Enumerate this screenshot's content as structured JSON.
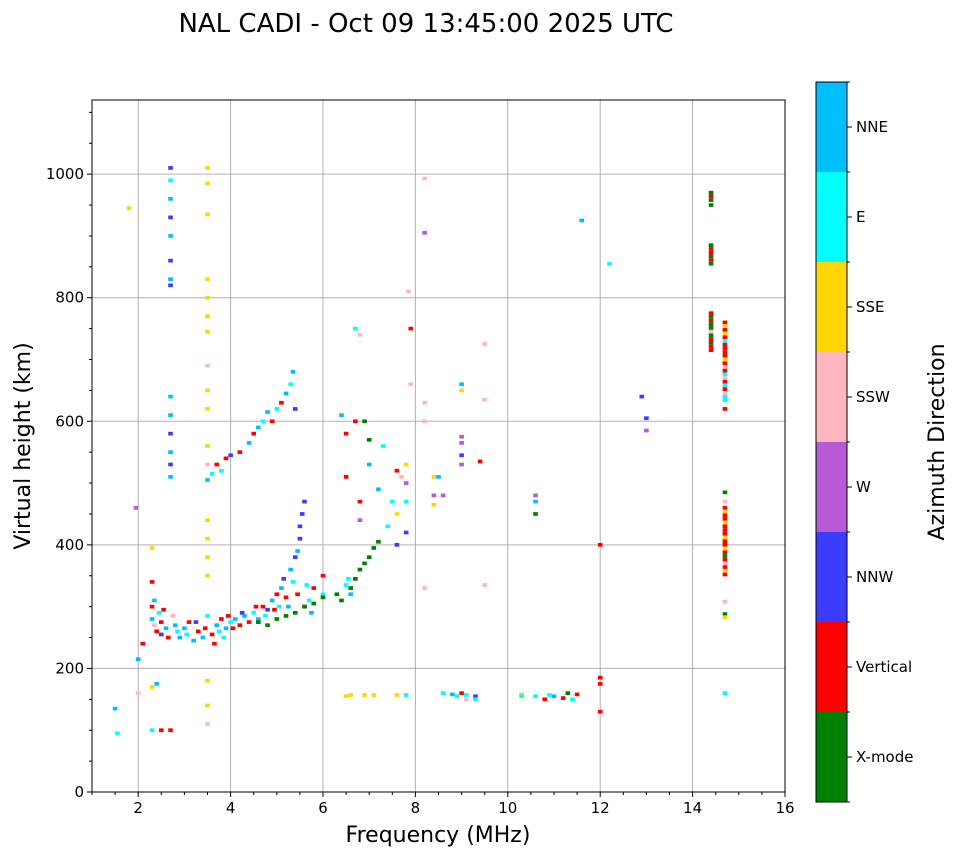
{
  "chart_data": {
    "type": "heatmap",
    "title": "NAL CADI - Oct 09 13:45:00 2025 UTC",
    "xlabel": "Frequency (MHz)",
    "ylabel": "Virtual height (km)",
    "xlim": [
      1,
      16
    ],
    "ylim": [
      0,
      1120
    ],
    "xticks": [
      2,
      4,
      6,
      8,
      10,
      12,
      14,
      16
    ],
    "yticks": [
      0,
      200,
      400,
      600,
      800,
      1000
    ],
    "grid": true,
    "cell_size": {
      "freq_mhz": 0.1,
      "height_km": 6
    },
    "colorbar": {
      "label": "Azimuth Direction",
      "placement": "right",
      "categories": [
        {
          "name": "X-mode",
          "color": "#008000"
        },
        {
          "name": "Vertical",
          "color": "#ff0000"
        },
        {
          "name": "NNW",
          "color": "#3c3cff"
        },
        {
          "name": "W",
          "color": "#b65ad6"
        },
        {
          "name": "SSW",
          "color": "#ffb6c1"
        },
        {
          "name": "SSE",
          "color": "#ffd700"
        },
        {
          "name": "E",
          "color": "#00ffff"
        },
        {
          "name": "NNE",
          "color": "#00bfff"
        }
      ]
    },
    "points_format": [
      "frequency_mhz",
      "virtual_height_km",
      "category_index"
    ],
    "points": [
      [
        2.3,
        300,
        1
      ],
      [
        2.3,
        280,
        7
      ],
      [
        2.35,
        270,
        4
      ],
      [
        2.4,
        260,
        1
      ],
      [
        2.45,
        290,
        6
      ],
      [
        2.5,
        255,
        2
      ],
      [
        2.5,
        275,
        1
      ],
      [
        2.6,
        265,
        7
      ],
      [
        2.65,
        250,
        1
      ],
      [
        2.8,
        270,
        7
      ],
      [
        2.85,
        260,
        6
      ],
      [
        2.9,
        250,
        7
      ],
      [
        3.0,
        265,
        7
      ],
      [
        3.05,
        255,
        6
      ],
      [
        3.1,
        275,
        1
      ],
      [
        3.2,
        245,
        7
      ],
      [
        3.3,
        260,
        1
      ],
      [
        3.4,
        250,
        7
      ],
      [
        3.5,
        285,
        6
      ],
      [
        3.6,
        255,
        1
      ],
      [
        3.65,
        240,
        1
      ],
      [
        3.7,
        270,
        7
      ],
      [
        3.75,
        260,
        6
      ],
      [
        3.8,
        280,
        1
      ],
      [
        3.9,
        265,
        7
      ],
      [
        3.95,
        285,
        1
      ],
      [
        4.0,
        275,
        6
      ],
      [
        4.1,
        280,
        7
      ],
      [
        4.2,
        270,
        1
      ],
      [
        4.3,
        285,
        7
      ],
      [
        4.4,
        275,
        1
      ],
      [
        4.5,
        290,
        6
      ],
      [
        4.6,
        280,
        7
      ],
      [
        4.7,
        300,
        1
      ],
      [
        4.8,
        295,
        2
      ],
      [
        4.9,
        310,
        7
      ],
      [
        5.0,
        320,
        1
      ],
      [
        5.05,
        300,
        6
      ],
      [
        5.1,
        330,
        7
      ],
      [
        5.15,
        345,
        2
      ],
      [
        5.2,
        315,
        1
      ],
      [
        5.3,
        360,
        7
      ],
      [
        5.35,
        340,
        6
      ],
      [
        5.4,
        380,
        2
      ],
      [
        5.45,
        390,
        7
      ],
      [
        5.5,
        410,
        2
      ],
      [
        5.5,
        430,
        2
      ],
      [
        5.55,
        450,
        2
      ],
      [
        5.6,
        470,
        2
      ],
      [
        5.6,
        300,
        1
      ],
      [
        5.7,
        310,
        6
      ],
      [
        5.8,
        330,
        1
      ],
      [
        6.0,
        320,
        6
      ],
      [
        6.0,
        350,
        1
      ],
      [
        2.35,
        310,
        7
      ],
      [
        2.55,
        295,
        1
      ],
      [
        2.75,
        285,
        4
      ],
      [
        3.25,
        275,
        2
      ],
      [
        3.45,
        265,
        1
      ],
      [
        3.85,
        250,
        6
      ],
      [
        4.05,
        265,
        1
      ],
      [
        4.25,
        290,
        2
      ],
      [
        4.55,
        300,
        1
      ],
      [
        4.75,
        285,
        6
      ],
      [
        4.95,
        295,
        1
      ],
      [
        5.25,
        300,
        7
      ],
      [
        5.45,
        320,
        1
      ],
      [
        5.65,
        335,
        6
      ],
      [
        5.75,
        290,
        7
      ],
      [
        4.6,
        275,
        0
      ],
      [
        4.8,
        270,
        0
      ],
      [
        5.0,
        280,
        0
      ],
      [
        5.2,
        285,
        0
      ],
      [
        5.4,
        290,
        0
      ],
      [
        5.6,
        300,
        0
      ],
      [
        5.8,
        305,
        0
      ],
      [
        6.0,
        315,
        0
      ],
      [
        6.3,
        320,
        0
      ],
      [
        6.4,
        310,
        0
      ],
      [
        6.6,
        330,
        0
      ],
      [
        6.7,
        345,
        0
      ],
      [
        6.8,
        360,
        0
      ],
      [
        6.9,
        370,
        0
      ],
      [
        7.0,
        380,
        0
      ],
      [
        7.1,
        395,
        0
      ],
      [
        7.2,
        405,
        0
      ],
      [
        6.5,
        335,
        6
      ],
      [
        6.6,
        320,
        7
      ],
      [
        6.55,
        345,
        6
      ],
      [
        3.5,
        505,
        7
      ],
      [
        3.6,
        515,
        6
      ],
      [
        3.7,
        530,
        1
      ],
      [
        3.8,
        520,
        6
      ],
      [
        3.9,
        540,
        1
      ],
      [
        4.0,
        545,
        2
      ],
      [
        4.2,
        550,
        1
      ],
      [
        4.4,
        565,
        7
      ],
      [
        4.5,
        580,
        1
      ],
      [
        4.6,
        590,
        7
      ],
      [
        4.7,
        600,
        6
      ],
      [
        4.8,
        615,
        7
      ],
      [
        4.9,
        600,
        1
      ],
      [
        5.0,
        620,
        6
      ],
      [
        5.1,
        630,
        1
      ],
      [
        5.2,
        645,
        7
      ],
      [
        5.3,
        660,
        6
      ],
      [
        5.35,
        680,
        7
      ],
      [
        5.4,
        620,
        2
      ],
      [
        2.7,
        510,
        7
      ],
      [
        2.7,
        530,
        2
      ],
      [
        2.7,
        550,
        7
      ],
      [
        2.7,
        580,
        2
      ],
      [
        2.7,
        610,
        7
      ],
      [
        2.7,
        640,
        7
      ],
      [
        2.7,
        820,
        2
      ],
      [
        2.7,
        830,
        7
      ],
      [
        2.7,
        860,
        2
      ],
      [
        2.7,
        900,
        7
      ],
      [
        2.7,
        930,
        2
      ],
      [
        2.7,
        960,
        7
      ],
      [
        2.7,
        990,
        6
      ],
      [
        2.7,
        1010,
        2
      ],
      [
        3.5,
        1010,
        5
      ],
      [
        3.5,
        985,
        5
      ],
      [
        3.5,
        935,
        5
      ],
      [
        3.5,
        830,
        5
      ],
      [
        3.5,
        800,
        5
      ],
      [
        3.5,
        770,
        5
      ],
      [
        3.5,
        745,
        5
      ],
      [
        3.5,
        690,
        4
      ],
      [
        3.5,
        650,
        5
      ],
      [
        3.5,
        620,
        5
      ],
      [
        3.5,
        560,
        5
      ],
      [
        3.5,
        530,
        4
      ],
      [
        3.5,
        440,
        5
      ],
      [
        3.5,
        410,
        5
      ],
      [
        3.5,
        380,
        5
      ],
      [
        3.5,
        350,
        5
      ],
      [
        3.5,
        180,
        5
      ],
      [
        3.5,
        140,
        5
      ],
      [
        3.5,
        110,
        4
      ],
      [
        1.5,
        135,
        7
      ],
      [
        1.55,
        95,
        6
      ],
      [
        2.0,
        215,
        7
      ],
      [
        2.0,
        160,
        4
      ],
      [
        2.3,
        170,
        5
      ],
      [
        2.4,
        175,
        7
      ],
      [
        2.3,
        100,
        6
      ],
      [
        2.5,
        100,
        1
      ],
      [
        2.7,
        100,
        1
      ],
      [
        1.8,
        945,
        5
      ],
      [
        1.95,
        460,
        3
      ],
      [
        2.1,
        240,
        1
      ],
      [
        2.3,
        340,
        1
      ],
      [
        2.3,
        395,
        5
      ],
      [
        6.4,
        610,
        7
      ],
      [
        6.5,
        580,
        1
      ],
      [
        6.5,
        510,
        1
      ],
      [
        6.7,
        600,
        1
      ],
      [
        6.7,
        750,
        6
      ],
      [
        6.8,
        740,
        4
      ],
      [
        6.9,
        600,
        0
      ],
      [
        7.0,
        570,
        0
      ],
      [
        7.0,
        530,
        7
      ],
      [
        6.8,
        470,
        1
      ],
      [
        6.8,
        440,
        3
      ],
      [
        7.2,
        490,
        7
      ],
      [
        7.3,
        560,
        6
      ],
      [
        7.5,
        470,
        6
      ],
      [
        7.6,
        520,
        1
      ],
      [
        7.6,
        450,
        5
      ],
      [
        7.8,
        530,
        5
      ],
      [
        7.8,
        500,
        3
      ],
      [
        7.8,
        470,
        6
      ],
      [
        7.8,
        420,
        2
      ],
      [
        7.9,
        750,
        1
      ],
      [
        7.85,
        810,
        4
      ],
      [
        7.9,
        660,
        4
      ],
      [
        7.6,
        400,
        2
      ],
      [
        7.4,
        430,
        6
      ],
      [
        7.7,
        510,
        4
      ],
      [
        8.2,
        993,
        4
      ],
      [
        8.2,
        905,
        3
      ],
      [
        8.2,
        630,
        4
      ],
      [
        8.2,
        600,
        4
      ],
      [
        8.4,
        510,
        5
      ],
      [
        8.5,
        510,
        7
      ],
      [
        8.4,
        480,
        3
      ],
      [
        8.4,
        465,
        5
      ],
      [
        8.6,
        480,
        3
      ],
      [
        8.2,
        330,
        4
      ],
      [
        9.0,
        660,
        7
      ],
      [
        9.0,
        650,
        5
      ],
      [
        9.0,
        575,
        3
      ],
      [
        9.0,
        545,
        2
      ],
      [
        9.0,
        530,
        3
      ],
      [
        9.0,
        565,
        3
      ],
      [
        9.4,
        535,
        1
      ],
      [
        9.5,
        635,
        4
      ],
      [
        9.5,
        725,
        4
      ],
      [
        9.5,
        335,
        4
      ],
      [
        10.6,
        480,
        3
      ],
      [
        10.6,
        470,
        7
      ],
      [
        10.6,
        450,
        0
      ],
      [
        12.0,
        400,
        1
      ],
      [
        12.2,
        855,
        6
      ],
      [
        11.6,
        925,
        7
      ],
      [
        12.0,
        185,
        1
      ],
      [
        12.0,
        175,
        1
      ],
      [
        12.0,
        130,
        1
      ],
      [
        12.9,
        640,
        2
      ],
      [
        13.0,
        605,
        2
      ],
      [
        13.0,
        585,
        3
      ],
      [
        6.5,
        155,
        5
      ],
      [
        6.6,
        157,
        5
      ],
      [
        6.9,
        157,
        5
      ],
      [
        7.1,
        157,
        5
      ],
      [
        7.6,
        157,
        5
      ],
      [
        7.8,
        157,
        6
      ],
      [
        8.6,
        160,
        6
      ],
      [
        8.8,
        158,
        7
      ],
      [
        8.9,
        155,
        6
      ],
      [
        9.0,
        160,
        1
      ],
      [
        9.1,
        150,
        4
      ],
      [
        9.1,
        157,
        6
      ],
      [
        9.3,
        155,
        2
      ],
      [
        9.3,
        150,
        6
      ],
      [
        10.3,
        158,
        5
      ],
      [
        10.3,
        155,
        6
      ],
      [
        10.6,
        155,
        6
      ],
      [
        10.8,
        150,
        1
      ],
      [
        10.9,
        157,
        6
      ],
      [
        11.0,
        155,
        7
      ],
      [
        11.2,
        152,
        1
      ],
      [
        11.3,
        160,
        0
      ],
      [
        11.5,
        158,
        1
      ],
      [
        11.4,
        150,
        6
      ],
      [
        14.4,
        970,
        0
      ],
      [
        14.4,
        964,
        1
      ],
      [
        14.4,
        958,
        0
      ],
      [
        14.4,
        950,
        0
      ],
      [
        14.4,
        885,
        0
      ],
      [
        14.4,
        879,
        1
      ],
      [
        14.4,
        873,
        1
      ],
      [
        14.4,
        867,
        0
      ],
      [
        14.4,
        861,
        1
      ],
      [
        14.4,
        855,
        0
      ],
      [
        14.4,
        775,
        1
      ],
      [
        14.4,
        769,
        0
      ],
      [
        14.4,
        763,
        1
      ],
      [
        14.4,
        757,
        0
      ],
      [
        14.4,
        751,
        0
      ],
      [
        14.4,
        745,
        4
      ],
      [
        14.4,
        739,
        0
      ],
      [
        14.4,
        733,
        1
      ],
      [
        14.4,
        727,
        0
      ],
      [
        14.4,
        721,
        1
      ],
      [
        14.4,
        715,
        1
      ],
      [
        14.7,
        760,
        1
      ],
      [
        14.7,
        754,
        5
      ],
      [
        14.7,
        748,
        1
      ],
      [
        14.7,
        742,
        5
      ],
      [
        14.7,
        736,
        1
      ],
      [
        14.7,
        730,
        6
      ],
      [
        14.7,
        724,
        1
      ],
      [
        14.7,
        718,
        1
      ],
      [
        14.7,
        712,
        1
      ],
      [
        14.7,
        706,
        1
      ],
      [
        14.7,
        700,
        5
      ],
      [
        14.7,
        694,
        1
      ],
      [
        14.7,
        688,
        4
      ],
      [
        14.7,
        682,
        1
      ],
      [
        14.7,
        676,
        6
      ],
      [
        14.7,
        670,
        4
      ],
      [
        14.7,
        664,
        1
      ],
      [
        14.7,
        658,
        6
      ],
      [
        14.7,
        652,
        1
      ],
      [
        14.7,
        646,
        4
      ],
      [
        14.7,
        640,
        6
      ],
      [
        14.7,
        634,
        6
      ],
      [
        14.7,
        620,
        1
      ],
      [
        14.7,
        485,
        0
      ],
      [
        14.7,
        470,
        4
      ],
      [
        14.7,
        460,
        1
      ],
      [
        14.7,
        454,
        5
      ],
      [
        14.7,
        448,
        1
      ],
      [
        14.7,
        442,
        1
      ],
      [
        14.7,
        436,
        5
      ],
      [
        14.7,
        430,
        1
      ],
      [
        14.7,
        424,
        1
      ],
      [
        14.7,
        418,
        1
      ],
      [
        14.7,
        412,
        5
      ],
      [
        14.7,
        406,
        1
      ],
      [
        14.7,
        400,
        1
      ],
      [
        14.7,
        394,
        5
      ],
      [
        14.7,
        388,
        1
      ],
      [
        14.7,
        382,
        0
      ],
      [
        14.7,
        376,
        1
      ],
      [
        14.7,
        370,
        4
      ],
      [
        14.7,
        364,
        1
      ],
      [
        14.7,
        358,
        5
      ],
      [
        14.7,
        352,
        1
      ],
      [
        14.7,
        308,
        4
      ],
      [
        14.7,
        288,
        0
      ],
      [
        14.7,
        283,
        5
      ],
      [
        14.7,
        160,
        6
      ]
    ]
  }
}
